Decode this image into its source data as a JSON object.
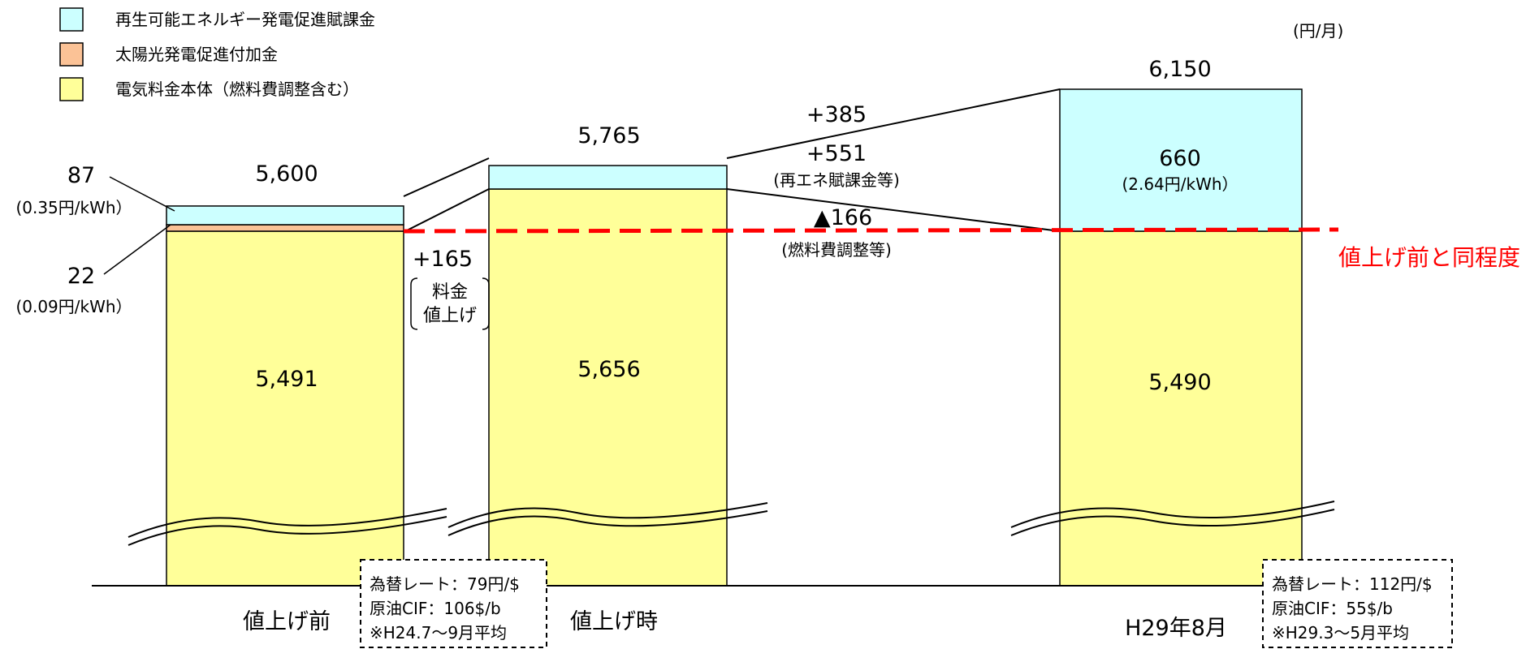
{
  "chart_data": {
    "type": "bar",
    "unit_label": "(円/月)",
    "categories": [
      "値上げ前",
      "値上げ時",
      "H29年8月"
    ],
    "totals": [
      "5,600",
      "5,765",
      "6,150"
    ],
    "colors": {
      "renewable": "#ccffff",
      "solar": "#fbc296",
      "base": "#ffff99",
      "reference_line": "#ff0000"
    },
    "series": [
      {
        "name": "再生可能エネルギー発電促進賦課金",
        "key": "renewable",
        "values": [
          87,
          109,
          660
        ]
      },
      {
        "name": "太陽光発電促進付加金",
        "key": "solar",
        "values": [
          22,
          0,
          0
        ]
      },
      {
        "name": "電気料金本体（燃料費調整含む）",
        "key": "base",
        "values": [
          5491,
          5656,
          5490
        ]
      }
    ],
    "segment_labels": {
      "pre_renewable": "87",
      "pre_renewable_rate": "(0.35円/kWh）",
      "pre_solar": "22",
      "pre_solar_rate": "(0.09円/kWh）",
      "pre_base": "5,491",
      "hike_base": "5,656",
      "aug_renewable": "660",
      "aug_renewable_rate": "(2.64円/kWh）",
      "aug_base": "5,490"
    },
    "annotations": {
      "hike_change": "+165",
      "hike_note": [
        "料金",
        "値上げ"
      ],
      "total_change": "+385",
      "renewable_change": "+551",
      "renewable_change_note": "(再エネ賦課金等)",
      "fuel_change": "▲166",
      "fuel_change_note": "(燃料費調整等)",
      "reference_line_label": "値上げ前と同程度"
    },
    "notes": [
      {
        "lines": [
          "為替レート：79円/$",
          "原油CIF：106$/b",
          "※H24.7～9月平均"
        ]
      },
      {
        "lines": [
          "為替レート：112円/$",
          "原油CIF：55$/b",
          "※H29.3～5月平均"
        ]
      }
    ]
  }
}
